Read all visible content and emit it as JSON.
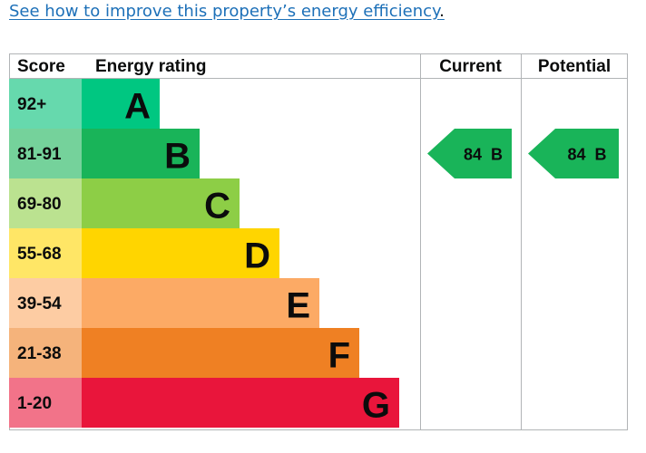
{
  "link": {
    "text": "See how to improve this property’s energy efficiency",
    "punct": "."
  },
  "table": {
    "headers": {
      "score": "Score",
      "rating": "Energy rating",
      "current": "Current",
      "potential": "Potential"
    }
  },
  "chart_data": {
    "type": "bar",
    "title": "",
    "bands": [
      {
        "score": "92+",
        "letter": "A",
        "color": "#00c781",
        "score_bg": "#66d9ad"
      },
      {
        "score": "81-91",
        "letter": "B",
        "color": "#19b459",
        "score_bg": "#75d29b"
      },
      {
        "score": "69-80",
        "letter": "C",
        "color": "#8dce46",
        "score_bg": "#bbe290"
      },
      {
        "score": "55-68",
        "letter": "D",
        "color": "#ffd500",
        "score_bg": "#ffe666"
      },
      {
        "score": "39-54",
        "letter": "E",
        "color": "#fcaa65",
        "score_bg": "#fdcca3"
      },
      {
        "score": "21-38",
        "letter": "F",
        "color": "#ef8023",
        "score_bg": "#f5b37b"
      },
      {
        "score": "1-20",
        "letter": "G",
        "color": "#e9153b",
        "score_bg": "#f27389"
      }
    ],
    "current": {
      "value": 84,
      "band": "B",
      "label": "84  B"
    },
    "potential": {
      "value": 84,
      "band": "B",
      "label": "84  B"
    }
  }
}
